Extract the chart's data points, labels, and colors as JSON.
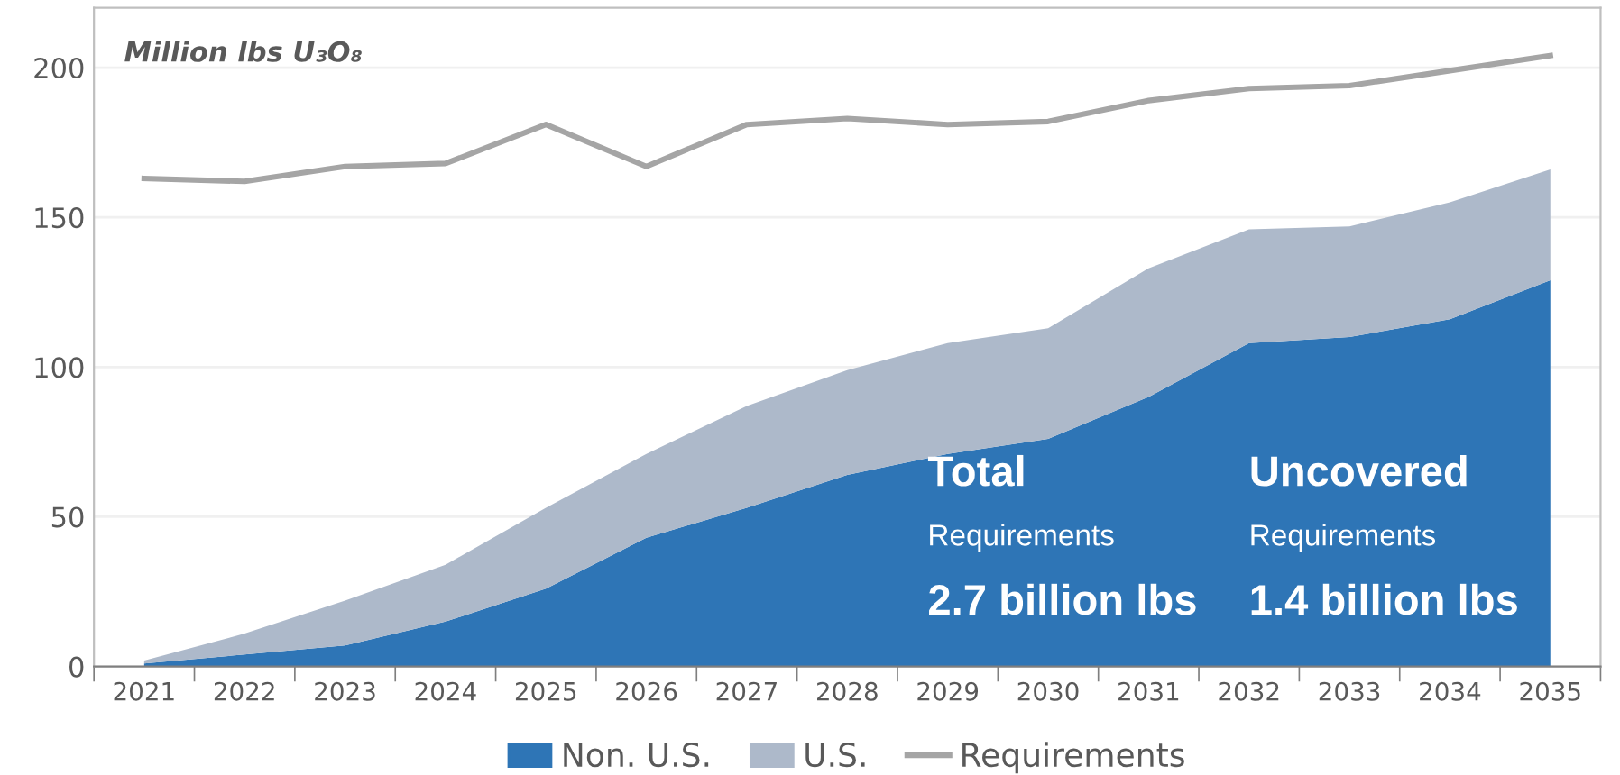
{
  "chart_data": {
    "type": "area",
    "stacked": true,
    "ylabel": "Million lbs U₃O₈",
    "categories": [
      "2021",
      "2022",
      "2023",
      "2024",
      "2025",
      "2026",
      "2027",
      "2028",
      "2029",
      "2030",
      "2031",
      "2032",
      "2033",
      "2034",
      "2035"
    ],
    "series": [
      {
        "name": "Non. U.S.",
        "color": "#2e75b6",
        "values": [
          1,
          4,
          7,
          15,
          26,
          43,
          53,
          64,
          71,
          76,
          90,
          108,
          110,
          116,
          129
        ]
      },
      {
        "name": "U.S.",
        "color": "#adb9ca",
        "values": [
          1,
          7,
          15,
          19,
          27,
          28,
          34,
          35,
          37,
          37,
          43,
          38,
          37,
          39,
          37
        ]
      },
      {
        "name": "Requirements",
        "type": "line",
        "color": "#a5a5a5",
        "values": [
          163,
          162,
          167,
          168,
          181,
          167,
          181,
          183,
          181,
          182,
          189,
          193,
          194,
          199,
          204
        ]
      }
    ],
    "annotations": [
      "Total",
      "Requirements",
      "2.7 billion lbs",
      "Uncovered",
      "Requirements",
      "1.4 billion lbs"
    ],
    "ylim": [
      0,
      220
    ],
    "yticks": [
      0,
      50,
      100,
      150,
      200
    ],
    "grid": "y",
    "legend": "bottom"
  }
}
